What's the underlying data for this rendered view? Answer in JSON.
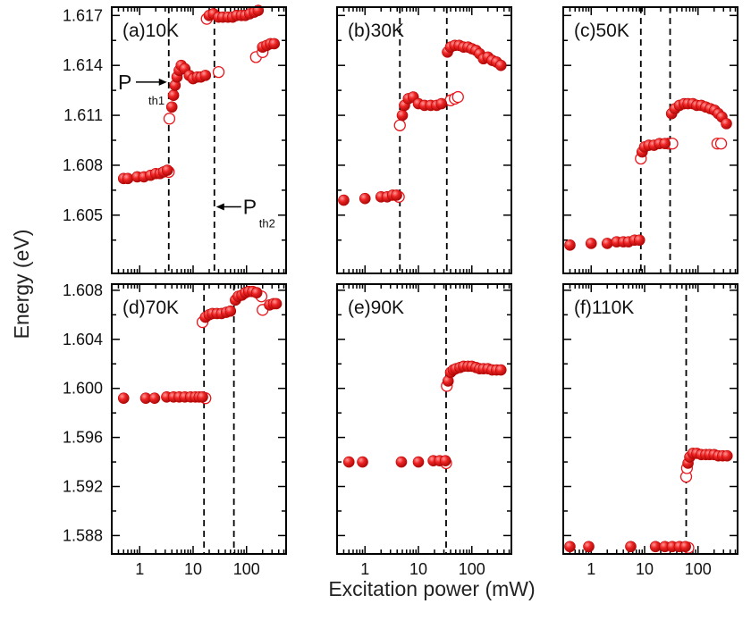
{
  "chart_data": {
    "type": "scatter",
    "xlabel": "Excitation power (mW)",
    "ylabel": "Energy (eV)",
    "xscale": "log",
    "xlim": [
      0.3,
      550
    ],
    "x_tick_labels": [
      "1",
      "10",
      "100"
    ],
    "top_row_y_ticks": [
      "1.617",
      "1.614",
      "1.611",
      "1.608",
      "1.605"
    ],
    "bottom_row_y_ticks": [
      "1.608",
      "1.604",
      "1.600",
      "1.596",
      "1.592",
      "1.588"
    ],
    "marker_color": "#e8161c",
    "panels": [
      {
        "label": "(a)10K",
        "ylim": [
          1.6015,
          1.6175
        ],
        "thresholds": [
          3.5,
          25
        ],
        "annotations": [
          {
            "text": "P",
            "sub": "th1"
          },
          {
            "text": "P",
            "sub": "th2"
          }
        ],
        "filled": [
          [
            0.5,
            1.6072
          ],
          [
            0.6,
            1.6072
          ],
          [
            0.9,
            1.6073
          ],
          [
            1.2,
            1.6073
          ],
          [
            1.6,
            1.6074
          ],
          [
            2.0,
            1.6075
          ],
          [
            2.4,
            1.6075
          ],
          [
            2.8,
            1.6076
          ],
          [
            3.3,
            1.6077
          ],
          [
            4.0,
            1.6115
          ],
          [
            4.3,
            1.6122
          ],
          [
            4.6,
            1.6128
          ],
          [
            5.0,
            1.6133
          ],
          [
            5.5,
            1.6137
          ],
          [
            6.0,
            1.614
          ],
          [
            7.0,
            1.6138
          ],
          [
            8.5,
            1.6134
          ],
          [
            10,
            1.6132
          ],
          [
            12,
            1.6133
          ],
          [
            14,
            1.6133
          ],
          [
            17,
            1.6134
          ],
          [
            20,
            1.617
          ],
          [
            24,
            1.6171
          ],
          [
            30,
            1.6169
          ],
          [
            36,
            1.6169
          ],
          [
            45,
            1.6169
          ],
          [
            55,
            1.6169
          ],
          [
            65,
            1.617
          ],
          [
            80,
            1.617
          ],
          [
            95,
            1.617
          ],
          [
            115,
            1.6171
          ],
          [
            140,
            1.6172
          ],
          [
            165,
            1.6173
          ],
          [
            200,
            1.6151
          ],
          [
            240,
            1.6152
          ],
          [
            280,
            1.6153
          ],
          [
            330,
            1.6153
          ]
        ],
        "open": [
          [
            3.5,
            1.6076
          ],
          [
            3.6,
            1.6108
          ],
          [
            18,
            1.6168
          ],
          [
            30,
            1.6136
          ],
          [
            150,
            1.6145
          ],
          [
            200,
            1.6148
          ]
        ]
      },
      {
        "label": "(b)30K",
        "ylim": [
          1.6015,
          1.6175
        ],
        "thresholds": [
          4.5,
          34
        ],
        "filled": [
          [
            0.4,
            1.6059
          ],
          [
            1.0,
            1.606
          ],
          [
            2.0,
            1.6061
          ],
          [
            2.6,
            1.6061
          ],
          [
            3.3,
            1.6062
          ],
          [
            3.9,
            1.6062
          ],
          [
            5.0,
            1.611
          ],
          [
            5.5,
            1.6116
          ],
          [
            6.5,
            1.612
          ],
          [
            8.0,
            1.6121
          ],
          [
            10,
            1.6117
          ],
          [
            13,
            1.6116
          ],
          [
            17,
            1.6116
          ],
          [
            22,
            1.6116
          ],
          [
            27,
            1.6117
          ],
          [
            35,
            1.6148
          ],
          [
            40,
            1.6151
          ],
          [
            48,
            1.6152
          ],
          [
            58,
            1.6152
          ],
          [
            70,
            1.6151
          ],
          [
            85,
            1.6151
          ],
          [
            100,
            1.615
          ],
          [
            120,
            1.6149
          ],
          [
            140,
            1.6147
          ],
          [
            165,
            1.6144
          ],
          [
            200,
            1.6145
          ],
          [
            240,
            1.6143
          ],
          [
            290,
            1.6142
          ],
          [
            350,
            1.614
          ]
        ],
        "open": [
          [
            4.3,
            1.6061
          ],
          [
            4.5,
            1.6104
          ],
          [
            40,
            1.6119
          ],
          [
            48,
            1.612
          ],
          [
            55,
            1.6121
          ]
        ]
      },
      {
        "label": "(c)50K",
        "ylim": [
          1.6015,
          1.6175
        ],
        "thresholds": [
          8.5,
          30
        ],
        "filled": [
          [
            0.4,
            1.6032
          ],
          [
            1.0,
            1.6033
          ],
          [
            2.0,
            1.6033
          ],
          [
            3.0,
            1.6034
          ],
          [
            4.0,
            1.6034
          ],
          [
            5.0,
            1.6034
          ],
          [
            6.5,
            1.6035
          ],
          [
            8.0,
            1.6035
          ],
          [
            9.0,
            1.6088
          ],
          [
            10,
            1.6091
          ],
          [
            12,
            1.6092
          ],
          [
            15,
            1.6092
          ],
          [
            19,
            1.6093
          ],
          [
            24,
            1.6093
          ],
          [
            32,
            1.6111
          ],
          [
            37,
            1.6114
          ],
          [
            45,
            1.6116
          ],
          [
            55,
            1.6117
          ],
          [
            65,
            1.6117
          ],
          [
            80,
            1.6117
          ],
          [
            95,
            1.6116
          ],
          [
            115,
            1.6116
          ],
          [
            140,
            1.6115
          ],
          [
            170,
            1.6114
          ],
          [
            205,
            1.6113
          ],
          [
            240,
            1.6111
          ],
          [
            280,
            1.6109
          ],
          [
            340,
            1.6105
          ]
        ],
        "open": [
          [
            8.5,
            1.6084
          ],
          [
            28,
            1.6093
          ],
          [
            33,
            1.6093
          ],
          [
            230,
            1.6093
          ],
          [
            270,
            1.6093
          ]
        ]
      },
      {
        "label": "(d)70K",
        "ylim": [
          1.5865,
          1.6085
        ],
        "thresholds": [
          16,
          58
        ],
        "filled": [
          [
            0.5,
            1.5992
          ],
          [
            1.3,
            1.5992
          ],
          [
            1.9,
            1.5992
          ],
          [
            3.2,
            1.5993
          ],
          [
            4.3,
            1.5993
          ],
          [
            5.5,
            1.5993
          ],
          [
            7.0,
            1.5993
          ],
          [
            9.0,
            1.5993
          ],
          [
            11,
            1.5993
          ],
          [
            13,
            1.5993
          ],
          [
            15,
            1.5993
          ],
          [
            17,
            1.6058
          ],
          [
            20,
            1.606
          ],
          [
            23,
            1.6061
          ],
          [
            28,
            1.6061
          ],
          [
            34,
            1.6061
          ],
          [
            42,
            1.6062
          ],
          [
            50,
            1.6063
          ],
          [
            62,
            1.6072
          ],
          [
            70,
            1.6075
          ],
          [
            82,
            1.6076
          ],
          [
            95,
            1.6078
          ],
          [
            110,
            1.6079
          ],
          [
            130,
            1.6079
          ],
          [
            155,
            1.6078
          ],
          [
            270,
            1.6068
          ],
          [
            320,
            1.6069
          ],
          [
            360,
            1.6069
          ]
        ],
        "open": [
          [
            15,
            1.6054
          ],
          [
            17,
            1.5992
          ],
          [
            190,
            1.6075
          ],
          [
            200,
            1.6064
          ]
        ]
      },
      {
        "label": "(e)90K",
        "ylim": [
          1.5865,
          1.6085
        ],
        "thresholds": [
          33
        ],
        "filled": [
          [
            0.5,
            1.594
          ],
          [
            0.9,
            1.594
          ],
          [
            4.8,
            1.594
          ],
          [
            10,
            1.594
          ],
          [
            19,
            1.5941
          ],
          [
            25,
            1.5941
          ],
          [
            32,
            1.5941
          ],
          [
            36,
            1.6006
          ],
          [
            40,
            1.6013
          ],
          [
            45,
            1.6015
          ],
          [
            50,
            1.6016
          ],
          [
            60,
            1.6017
          ],
          [
            70,
            1.6018
          ],
          [
            85,
            1.6018
          ],
          [
            100,
            1.6018
          ],
          [
            120,
            1.6017
          ],
          [
            140,
            1.6016
          ],
          [
            165,
            1.6016
          ],
          [
            200,
            1.6016
          ],
          [
            240,
            1.6015
          ],
          [
            290,
            1.6015
          ],
          [
            350,
            1.6015
          ]
        ],
        "open": [
          [
            33,
            1.5939
          ],
          [
            34,
            1.6002
          ]
        ]
      },
      {
        "label": "(f)110K",
        "ylim": [
          1.5865,
          1.6085
        ],
        "thresholds": [
          60
        ],
        "filled": [
          [
            0.4,
            1.5871
          ],
          [
            0.9,
            1.5871
          ],
          [
            5.5,
            1.5871
          ],
          [
            16,
            1.5871
          ],
          [
            24,
            1.5871
          ],
          [
            33,
            1.5871
          ],
          [
            45,
            1.5871
          ],
          [
            58,
            1.5871
          ],
          [
            65,
            1.5939
          ],
          [
            70,
            1.5944
          ],
          [
            80,
            1.5947
          ],
          [
            95,
            1.5947
          ],
          [
            115,
            1.5946
          ],
          [
            140,
            1.5946
          ],
          [
            165,
            1.5946
          ],
          [
            200,
            1.5946
          ],
          [
            240,
            1.5945
          ],
          [
            290,
            1.5945
          ],
          [
            350,
            1.5945
          ]
        ],
        "open": [
          [
            60,
            1.5928
          ],
          [
            62,
            1.5935
          ],
          [
            66,
            1.587
          ]
        ]
      }
    ]
  }
}
